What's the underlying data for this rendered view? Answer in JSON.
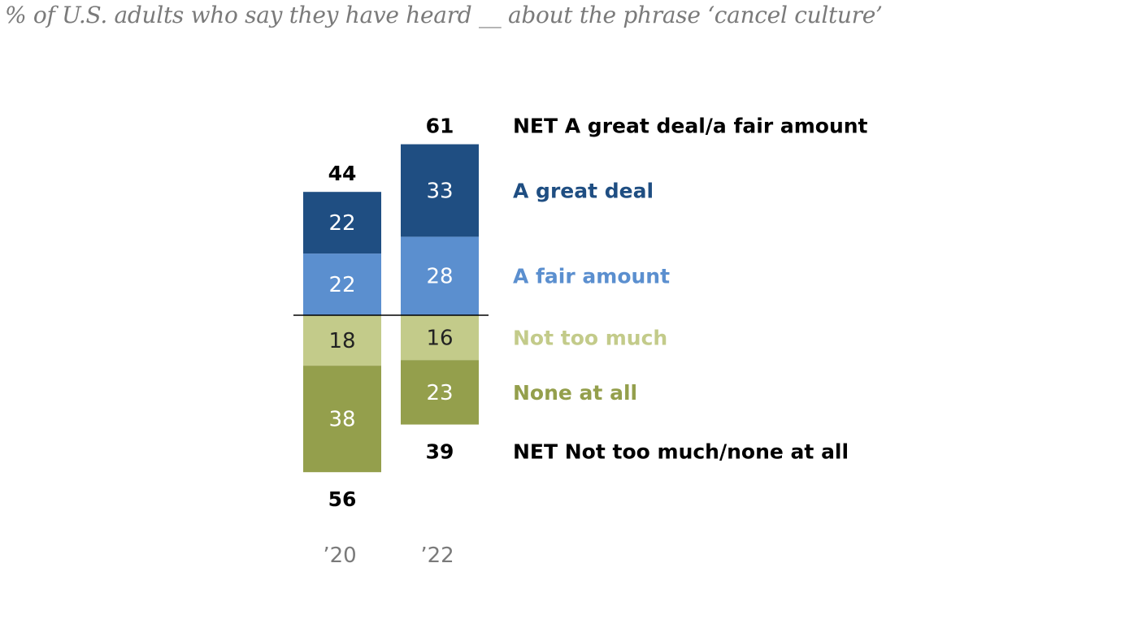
{
  "subtitle": "% of U.S. adults who say they have heard __ about the phrase ‘cancel culture’",
  "colors": {
    "great_deal": "#1f4e82",
    "fair_amount": "#5b8fcf",
    "not_too_much": "#c3cb8a",
    "none_at_all": "#949f4c"
  },
  "chart_data": {
    "type": "bar",
    "subtype": "diverging-stacked",
    "categories": [
      "’20",
      "’22"
    ],
    "series": [
      {
        "name": "A great deal",
        "values": [
          22,
          33
        ],
        "side": "positive",
        "color": "#1f4e82",
        "text_color": "#ffffff"
      },
      {
        "name": "A fair amount",
        "values": [
          22,
          28
        ],
        "side": "positive",
        "color": "#5b8fcf",
        "text_color": "#ffffff"
      },
      {
        "name": "Not too much",
        "values": [
          18,
          16
        ],
        "side": "negative",
        "color": "#c3cb8a",
        "text_color": "#222222"
      },
      {
        "name": "None at all",
        "values": [
          38,
          23
        ],
        "side": "negative",
        "color": "#949f4c",
        "text_color": "#ffffff"
      }
    ],
    "net_positive": {
      "name": "NET A great deal/a fair amount",
      "values": [
        44,
        61
      ]
    },
    "net_negative": {
      "name": "NET Not too much/none at all",
      "values": [
        56,
        39
      ]
    }
  }
}
